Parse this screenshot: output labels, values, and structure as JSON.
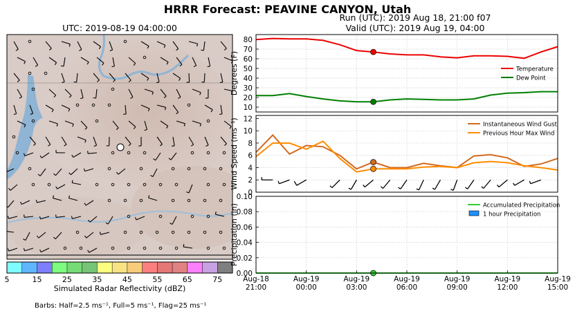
{
  "figure": {
    "title": "HRRR Forecast: PEAVINE CANYON, Utah",
    "map_title": "UTC: 2019-08-19 04:00:00",
    "run_line": "Run (UTC): 2019 Aug 18, 21:00 f07",
    "valid_line": "Valid (UTC): 2019 Aug 19, 04:00",
    "colorbar_label": "Simulated Radar Reflectivity (dBZ)",
    "barb_note": "Barbs: Half=2.5 ms⁻¹, Full=5 ms⁻¹, Flag=25 ms⁻¹"
  },
  "colorbar": {
    "ticks": [
      "5",
      "15",
      "25",
      "35",
      "45",
      "55",
      "65",
      "75"
    ],
    "colors": [
      "#7ffcff",
      "#5fb6ff",
      "#7f7ffb",
      "#7dfd7f",
      "#76da76",
      "#76c476",
      "#fdfd80",
      "#f8e283",
      "#f8cd7a",
      "#fc7f7f",
      "#e57777",
      "#e08282",
      "#fc7ffd",
      "#c7a1e2",
      "#7f7f7f"
    ]
  },
  "x_ticks": [
    [
      "Aug-18",
      "21:00"
    ],
    [
      "Aug-19",
      "00:00"
    ],
    [
      "Aug-19",
      "03:00"
    ],
    [
      "Aug-19",
      "06:00"
    ],
    [
      "Aug-19",
      "09:00"
    ],
    [
      "Aug-19",
      "12:00"
    ],
    [
      "Aug-19",
      "15:00"
    ]
  ],
  "chart_data": [
    {
      "type": "line",
      "title": "",
      "xlabel": "",
      "ylabel": "Degrees (F)",
      "ylim": [
        5,
        85
      ],
      "yticks": [
        10,
        20,
        30,
        40,
        50,
        60,
        70,
        80
      ],
      "x_range": [
        0,
        18
      ],
      "x_unit": "hours after Aug-18 21:00 UTC",
      "grid": true,
      "legend_position": "right",
      "highlight_x": 7,
      "x": [
        0,
        1,
        2,
        3,
        4,
        5,
        6,
        7,
        8,
        9,
        10,
        11,
        12,
        13,
        14,
        15,
        16,
        17,
        18
      ],
      "series": [
        {
          "name": "Temperature",
          "color": "#ee0000",
          "values": [
            79.8,
            81,
            80.5,
            80.5,
            79,
            74.5,
            68.5,
            67,
            65,
            64,
            64,
            62,
            61,
            63,
            63,
            62.5,
            60.5,
            67,
            72.5
          ]
        },
        {
          "name": "Dew Point",
          "color": "#007f00",
          "values": [
            22,
            22,
            24,
            21,
            18.5,
            16.5,
            15.5,
            15.5,
            17.5,
            18.5,
            18,
            17.5,
            17.5,
            18.5,
            22.5,
            24.5,
            25,
            26,
            26
          ]
        }
      ]
    },
    {
      "type": "line",
      "title": "",
      "xlabel": "",
      "ylabel": "Wind Speed (ms⁻¹)",
      "ylim": [
        0,
        12.5
      ],
      "yticks": [
        0,
        2,
        4,
        6,
        8,
        10,
        12
      ],
      "x_range": [
        0,
        18
      ],
      "grid": true,
      "legend_position": "top-right",
      "highlight_x": 7,
      "x": [
        0,
        1,
        2,
        3,
        4,
        5,
        6,
        7,
        8,
        9,
        10,
        11,
        12,
        13,
        14,
        15,
        16,
        17,
        18
      ],
      "series": [
        {
          "name": "Instantaneous Wind Gust",
          "color": "#d2691e",
          "values": [
            6.5,
            9.3,
            6.2,
            7.6,
            7.4,
            6.0,
            3.8,
            4.9,
            4.0,
            4.0,
            4.7,
            4.3,
            4.0,
            5.9,
            6.1,
            5.6,
            4.2,
            4.6,
            5.5
          ]
        },
        {
          "name": "Previous Hour Max Wind",
          "color": "#ff8c00",
          "values": [
            5.8,
            8.0,
            8.0,
            7.0,
            8.3,
            5.5,
            3.3,
            3.8,
            3.8,
            3.8,
            4.1,
            4.2,
            4.0,
            4.8,
            5.0,
            4.8,
            4.3,
            4.0,
            3.6
          ]
        }
      ],
      "barbs": [
        {
          "x": 1,
          "speed": 2.0,
          "dir": 270
        },
        {
          "x": 2,
          "speed": 4.5,
          "dir": 250
        },
        {
          "x": 3,
          "speed": 5.5,
          "dir": 240
        },
        {
          "x": 5,
          "speed": 3.2,
          "dir": 225
        },
        {
          "x": 6,
          "speed": 2.5,
          "dir": 210
        },
        {
          "x": 7,
          "speed": 3.0,
          "dir": 230
        },
        {
          "x": 8,
          "speed": 3.5,
          "dir": 220
        },
        {
          "x": 9,
          "speed": 3.8,
          "dir": 215
        },
        {
          "x": 10,
          "speed": 4.0,
          "dir": 205
        },
        {
          "x": 11,
          "speed": 3.0,
          "dir": 210
        },
        {
          "x": 12,
          "speed": 4.0,
          "dir": 200
        },
        {
          "x": 13,
          "speed": 4.6,
          "dir": 215
        },
        {
          "x": 14,
          "speed": 4.3,
          "dir": 220
        },
        {
          "x": 15,
          "speed": 4.1,
          "dir": 230
        },
        {
          "x": 16,
          "speed": 3.2,
          "dir": 240
        },
        {
          "x": 17,
          "speed": 3.0,
          "dir": 250
        }
      ]
    },
    {
      "type": "line",
      "title": "",
      "xlabel": "",
      "ylabel": "Precipitation (in)",
      "ylim": [
        0,
        0.1
      ],
      "yticks": [
        "0.00",
        "0.02",
        "0.04",
        "0.06",
        "0.08",
        "0.10"
      ],
      "x_range": [
        0,
        18
      ],
      "grid": true,
      "legend_position": "top-right",
      "highlight_x": 7,
      "x": [
        0,
        1,
        2,
        3,
        4,
        5,
        6,
        7,
        8,
        9,
        10,
        11,
        12,
        13,
        14,
        15,
        16,
        17,
        18
      ],
      "series": [
        {
          "name": "Accumulated Precipitation",
          "color": "#32cd32",
          "values": [
            0,
            0,
            0,
            0,
            0,
            0,
            0,
            0,
            0,
            0,
            0,
            0,
            0,
            0,
            0,
            0,
            0,
            0,
            0
          ]
        },
        {
          "name": "1 hour Precipitation",
          "color": "#1e90ff",
          "kind": "bar",
          "values": [
            0,
            0,
            0,
            0,
            0,
            0,
            0,
            0,
            0,
            0,
            0,
            0,
            0,
            0,
            0,
            0,
            0,
            0,
            0
          ]
        }
      ]
    }
  ]
}
